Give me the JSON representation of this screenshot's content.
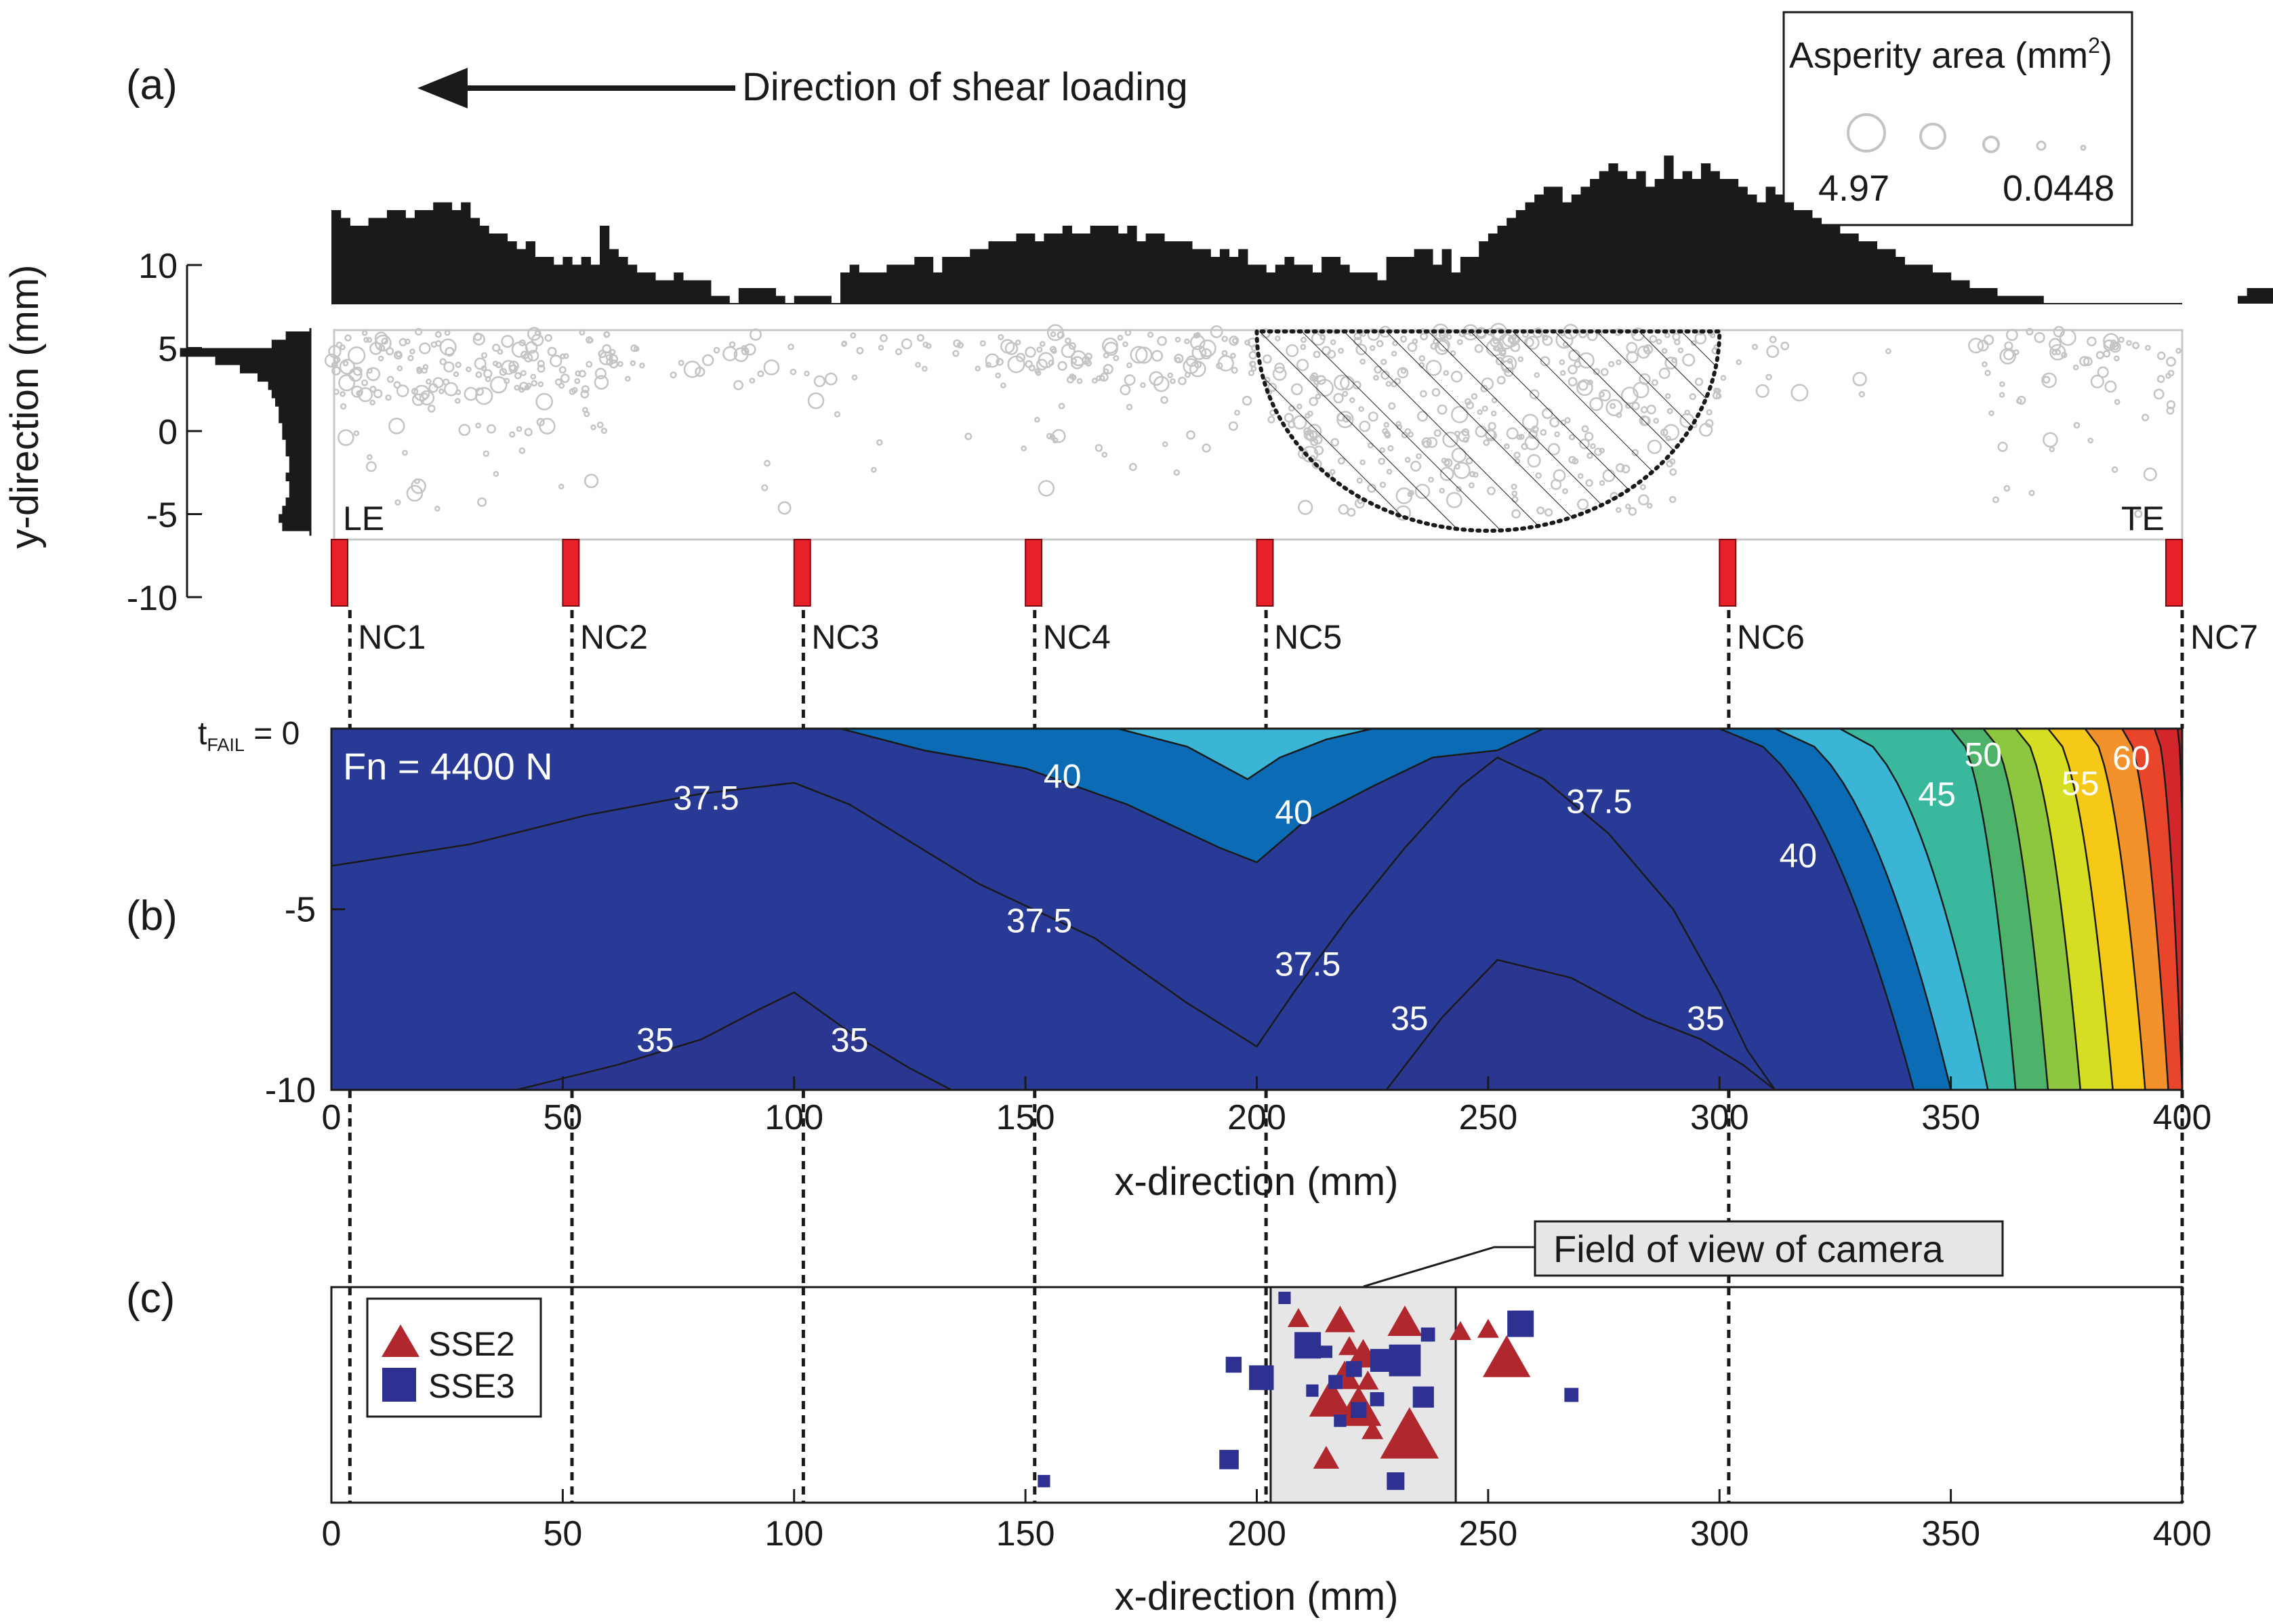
{
  "panel_labels": {
    "a": "(a)",
    "b": "(b)",
    "c": "(c)"
  },
  "shear_label": "Direction of shear loading",
  "legend_a": {
    "title_text": "Asperity area (mm",
    "title_sup": "2",
    "title_close": ")",
    "max_label": "4.97",
    "min_label": "0.0448"
  },
  "edge_labels": {
    "leading": "LE",
    "trailing": "TE"
  },
  "colors": {
    "hist": "#1a1a1a",
    "asperity": "#c4c4c4",
    "sensor": "#e8202a",
    "sse2": "#b0282e",
    "sse3": "#2e3192",
    "camera": "#e6e6e6"
  },
  "chart_data": [
    {
      "type": "scatter",
      "panel": "a",
      "ylabel": "y-direction (mm)",
      "xlim": [
        0,
        400
      ],
      "ylim": [
        -10,
        10
      ],
      "yticks": [
        10,
        5,
        0,
        -5,
        -10
      ],
      "histogram_x": {
        "bin_width_mm": 2,
        "counts": [
          12,
          11,
          10,
          10,
          11,
          11,
          12,
          12,
          11,
          12,
          12,
          13,
          13,
          12,
          13,
          11,
          10,
          9,
          9,
          8,
          7,
          8,
          6,
          6,
          5,
          6,
          5,
          6,
          5,
          10,
          7,
          6,
          5,
          4,
          4,
          3,
          3,
          4,
          3,
          3,
          3,
          1,
          1,
          0,
          2,
          2,
          2,
          2,
          1,
          0,
          1,
          1,
          1,
          1,
          0,
          4,
          5,
          4,
          4,
          4,
          5,
          5,
          5,
          6,
          6,
          4,
          6,
          6,
          6,
          7,
          7,
          8,
          8,
          8,
          9,
          9,
          8,
          9,
          9,
          10,
          9,
          9,
          10,
          10,
          10,
          9,
          10,
          8,
          9,
          9,
          8,
          8,
          8,
          7,
          7,
          6,
          7,
          6,
          7,
          5,
          5,
          4,
          5,
          6,
          5,
          5,
          4,
          6,
          6,
          5,
          4,
          4,
          4,
          3,
          6,
          6,
          6,
          7,
          7,
          5,
          7,
          4,
          6,
          6,
          8,
          9,
          10,
          11,
          12,
          13,
          14,
          15,
          15,
          13,
          14,
          15,
          16,
          17,
          18,
          17,
          16,
          17,
          15,
          16,
          19,
          16,
          17,
          16,
          18,
          17,
          16,
          16,
          15,
          14,
          13,
          15,
          14,
          13,
          12,
          12,
          11,
          10,
          10,
          9,
          9,
          8,
          8,
          7,
          7,
          6,
          5,
          5,
          5,
          4,
          4,
          3,
          3,
          2,
          2,
          2,
          1,
          1,
          1,
          1,
          1,
          0,
          0,
          0,
          0,
          0,
          0,
          0,
          0,
          0,
          0,
          0,
          0,
          0,
          0,
          0,
          0,
          0,
          0,
          0,
          0,
          0,
          1,
          2,
          2,
          2,
          2,
          2,
          2,
          1,
          1,
          0,
          0,
          0,
          0,
          0,
          1,
          1,
          2,
          2,
          3,
          3,
          3,
          3,
          4,
          4,
          3,
          3,
          4,
          4,
          4,
          5,
          5,
          5,
          5,
          4,
          3,
          2,
          2,
          1
        ]
      },
      "histogram_y": {
        "bins_y_top": [
          6.0,
          5.5,
          5.0,
          4.5,
          4.0,
          3.5,
          3.0,
          2.5,
          2.0,
          1.5,
          1.0,
          0.5,
          0.0,
          -0.5,
          -1.0,
          -1.5,
          -2.0,
          -2.5,
          -3.0,
          -3.5,
          -4.0,
          -4.5,
          -5.0,
          -5.5
        ],
        "counts": [
          7,
          11,
          37,
          27,
          20,
          15,
          12,
          11,
          10,
          9,
          9,
          8,
          8,
          7,
          7,
          6,
          6,
          7,
          6,
          6,
          7,
          8,
          9,
          8
        ]
      },
      "asperities": {
        "area_mm2_max": 4.97,
        "area_mm2_min": 0.0448,
        "region_density": [
          {
            "x": [
              0,
              60
            ],
            "y": [
              2,
              6
            ],
            "per_mm": 2.4
          },
          {
            "x": [
              0,
              60
            ],
            "y": [
              -5,
              2
            ],
            "per_mm": 0.6
          },
          {
            "x": [
              60,
              140
            ],
            "y": [
              3,
              6
            ],
            "per_mm": 0.6
          },
          {
            "x": [
              60,
              140
            ],
            "y": [
              -5,
              3
            ],
            "per_mm": 0.12
          },
          {
            "x": [
              140,
              200
            ],
            "y": [
              3,
              6
            ],
            "per_mm": 1.6
          },
          {
            "x": [
              140,
              200
            ],
            "y": [
              -5,
              3
            ],
            "per_mm": 0.4
          },
          {
            "x": [
              200,
              300
            ],
            "y": [
              0,
              6
            ],
            "per_mm": 2.4
          },
          {
            "x": [
              210,
              290
            ],
            "y": [
              -5,
              0
            ],
            "per_mm": 1.6
          },
          {
            "x": [
              300,
              340
            ],
            "y": [
              2,
              6
            ],
            "per_mm": 0.3
          },
          {
            "x": [
              355,
              400
            ],
            "y": [
              3,
              6
            ],
            "per_mm": 1.0
          },
          {
            "x": [
              355,
              400
            ],
            "y": [
              -5,
              3
            ],
            "per_mm": 0.5
          }
        ]
      },
      "hatched_region": {
        "x_center": 250,
        "x_halfwidth": 50,
        "y_top": 6,
        "y_bottom": -6
      },
      "sensors": {
        "labels": [
          "NC1",
          "NC2",
          "NC3",
          "NC4",
          "NC5",
          "NC6",
          "NC7"
        ],
        "x": [
          0,
          50,
          100,
          150,
          200,
          300,
          400
        ],
        "x_line": [
          4,
          52,
          102,
          152,
          202,
          302,
          400
        ]
      }
    },
    {
      "type": "contour",
      "panel": "b",
      "annotation": "Fn = 4400 N",
      "xlabel": "x-direction (mm)",
      "ylabel_main": "t",
      "ylabel_sub": "FAIL",
      "ylabel_tail": " = 0",
      "xlim": [
        0,
        400
      ],
      "ylim": [
        -10,
        0
      ],
      "xticks": [
        0,
        50,
        100,
        150,
        200,
        250,
        300,
        350,
        400
      ],
      "yticks": [
        -5,
        -10
      ],
      "levels": [
        35,
        37.5,
        40,
        42.5,
        45,
        47.5,
        50,
        52.5,
        55,
        57.5,
        60,
        62.5
      ],
      "level_colors": [
        "#2b3690",
        "#283a95",
        "#0b6bb5",
        "#3ab5d5",
        "#3ab89e",
        "#4db36b",
        "#8dc63f",
        "#d6de23",
        "#f6c817",
        "#f3922a",
        "#e9452b",
        "#d2262a",
        "#b21f26"
      ],
      "contour_labels": [
        {
          "text": "37.5",
          "x": 81,
          "y": -1.9
        },
        {
          "text": "40",
          "x": 158,
          "y": -1.3
        },
        {
          "text": "40",
          "x": 208,
          "y": -2.3
        },
        {
          "text": "37.5",
          "x": 274,
          "y": -2.0
        },
        {
          "text": "45",
          "x": 347,
          "y": -1.8
        },
        {
          "text": "50",
          "x": 357,
          "y": -0.7
        },
        {
          "text": "55",
          "x": 378,
          "y": -1.5
        },
        {
          "text": "60",
          "x": 389,
          "y": -0.8
        },
        {
          "text": "40",
          "x": 317,
          "y": -3.5
        },
        {
          "text": "37.5",
          "x": 153,
          "y": -5.3
        },
        {
          "text": "37.5",
          "x": 211,
          "y": -6.5
        },
        {
          "text": "35",
          "x": 70,
          "y": -8.6
        },
        {
          "text": "35",
          "x": 112,
          "y": -8.6
        },
        {
          "text": "35",
          "x": 233,
          "y": -8.0
        },
        {
          "text": "35",
          "x": 297,
          "y": -8.0
        }
      ]
    },
    {
      "type": "scatter",
      "panel": "c",
      "xlabel": "x-direction (mm)",
      "xlim": [
        0,
        400
      ],
      "xticks": [
        0,
        50,
        100,
        150,
        200,
        250,
        300,
        350,
        400
      ],
      "camera_field": {
        "label": "Field of view of camera",
        "x": [
          203,
          243
        ]
      },
      "series": [
        {
          "name": "SSE2",
          "marker": "triangle",
          "points": [
            {
              "x": 209,
              "y": 0.85,
              "s": 1.0
            },
            {
              "x": 218,
              "y": 0.84,
              "s": 1.4
            },
            {
              "x": 220,
              "y": 0.72,
              "s": 1.0
            },
            {
              "x": 223,
              "y": 0.68,
              "s": 1.5
            },
            {
              "x": 219,
              "y": 0.58,
              "s": 1.5
            },
            {
              "x": 216,
              "y": 0.47,
              "s": 2.0
            },
            {
              "x": 222,
              "y": 0.43,
              "s": 2.1
            },
            {
              "x": 224,
              "y": 0.56,
              "s": 1.0
            },
            {
              "x": 232,
              "y": 0.83,
              "s": 1.6
            },
            {
              "x": 244,
              "y": 0.79,
              "s": 1.0
            },
            {
              "x": 250,
              "y": 0.8,
              "s": 1.0
            },
            {
              "x": 254,
              "y": 0.66,
              "s": 2.2
            },
            {
              "x": 233,
              "y": 0.3,
              "s": 2.7
            },
            {
              "x": 215,
              "y": 0.2,
              "s": 1.2
            },
            {
              "x": 225,
              "y": 0.33,
              "s": 1.0
            }
          ]
        },
        {
          "name": "SSE3",
          "marker": "square",
          "points": [
            {
              "x": 154,
              "y": 0.1,
              "s": 0.7
            },
            {
              "x": 194,
              "y": 0.2,
              "s": 1.1
            },
            {
              "x": 195,
              "y": 0.64,
              "s": 0.9
            },
            {
              "x": 201,
              "y": 0.58,
              "s": 1.4
            },
            {
              "x": 206,
              "y": 0.95,
              "s": 0.7
            },
            {
              "x": 211,
              "y": 0.73,
              "s": 1.5
            },
            {
              "x": 215,
              "y": 0.7,
              "s": 0.7
            },
            {
              "x": 221,
              "y": 0.62,
              "s": 0.9
            },
            {
              "x": 227,
              "y": 0.66,
              "s": 1.3
            },
            {
              "x": 232,
              "y": 0.66,
              "s": 1.8
            },
            {
              "x": 237,
              "y": 0.78,
              "s": 0.8
            },
            {
              "x": 257,
              "y": 0.83,
              "s": 1.5
            },
            {
              "x": 268,
              "y": 0.5,
              "s": 0.8
            },
            {
              "x": 236,
              "y": 0.49,
              "s": 1.2
            },
            {
              "x": 217,
              "y": 0.56,
              "s": 0.8
            },
            {
              "x": 226,
              "y": 0.48,
              "s": 0.8
            },
            {
              "x": 222,
              "y": 0.43,
              "s": 0.9
            },
            {
              "x": 230,
              "y": 0.1,
              "s": 1.0
            },
            {
              "x": 218,
              "y": 0.38,
              "s": 0.7
            },
            {
              "x": 212,
              "y": 0.52,
              "s": 0.7
            }
          ]
        }
      ]
    }
  ]
}
